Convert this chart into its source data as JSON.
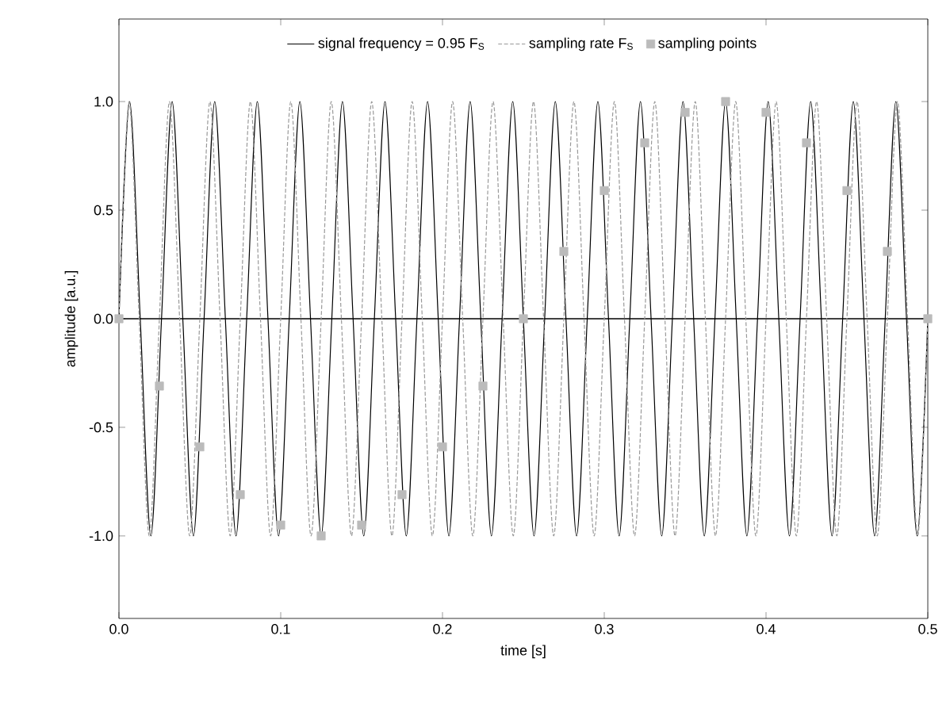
{
  "chart_data": {
    "type": "line",
    "xlabel": "time [s]",
    "ylabel": "amplitude [a.u.]",
    "xlim": [
      0,
      0.5
    ],
    "ylim": [
      -1.38,
      1.38
    ],
    "xticks": [
      {
        "value": 0,
        "label": "0.0"
      },
      {
        "value": 0.1,
        "label": "0.1"
      },
      {
        "value": 0.2,
        "label": "0.2"
      },
      {
        "value": 0.3,
        "label": "0.3"
      },
      {
        "value": 0.4,
        "label": "0.4"
      },
      {
        "value": 0.5,
        "label": "0.5"
      }
    ],
    "yticks": [
      {
        "value": -1,
        "label": "-1.0"
      },
      {
        "value": -0.5,
        "label": "-0.5"
      },
      {
        "value": 0,
        "label": "0.0"
      },
      {
        "value": 0.5,
        "label": "0.5"
      },
      {
        "value": 1,
        "label": "1.0"
      }
    ],
    "legend": "top",
    "ref_lines": [
      {
        "axis": "y",
        "value": 0,
        "color": "#000000"
      }
    ],
    "series": [
      {
        "name": "signal frequency = 0.95 F$_{S}$",
        "color": "#000000",
        "line_style": "solid",
        "x": [
          0,
          0.00658,
          0.01316,
          0.01974,
          0.02632,
          0.03289,
          0.03947,
          0.04605,
          0.05263,
          0.05921,
          0.06579,
          0.07237,
          0.07895,
          0.08553,
          0.09211,
          0.09868,
          0.10526,
          0.11184,
          0.11842,
          0.125,
          0.13158,
          0.13816,
          0.14474,
          0.15132,
          0.15789,
          0.16447,
          0.17105,
          0.17763,
          0.18421,
          0.19079,
          0.19737,
          0.20395,
          0.21053,
          0.21711,
          0.22368,
          0.23026,
          0.23684,
          0.24342,
          0.25,
          0.25658,
          0.26316,
          0.26974,
          0.27632,
          0.28289,
          0.28947,
          0.29605,
          0.30263,
          0.30921,
          0.31579,
          0.32237,
          0.32895,
          0.33553,
          0.34211,
          0.34868,
          0.35526,
          0.36184,
          0.36842,
          0.375,
          0.38158,
          0.38816,
          0.39474,
          0.40132,
          0.40789,
          0.41447,
          0.42105,
          0.42763,
          0.43421,
          0.44079,
          0.44737,
          0.45395,
          0.46053,
          0.46711,
          0.47368,
          0.48026,
          0.48684,
          0.49342,
          0.5
        ],
        "values": [
          0,
          1,
          0,
          -1,
          0,
          1,
          0,
          -1,
          0,
          1,
          0,
          -1,
          0,
          1,
          0,
          -1,
          0,
          1,
          0,
          -1,
          0,
          1,
          0,
          -1,
          0,
          1,
          0,
          -1,
          0,
          1,
          0,
          -1,
          0,
          1,
          0,
          -1,
          0,
          1,
          0,
          -1,
          0,
          1,
          0,
          -1,
          0,
          1,
          0,
          -1,
          0,
          1,
          0,
          -1,
          0,
          1,
          0,
          -1,
          0,
          1,
          0,
          -1,
          0,
          1,
          0,
          -1,
          0,
          1,
          0,
          -1,
          0,
          1,
          0,
          -1,
          0,
          1,
          0,
          -1,
          0
        ]
      },
      {
        "name": "sampling rate F$_{S}$",
        "color": "#999999",
        "line_style": "dashed",
        "x": [
          0,
          0.00625,
          0.0125,
          0.01875,
          0.025,
          0.03125,
          0.0375,
          0.04375,
          0.05,
          0.05625,
          0.0625,
          0.06875,
          0.075,
          0.08125,
          0.0875,
          0.09375,
          0.1,
          0.10625,
          0.1125,
          0.11875,
          0.125,
          0.13125,
          0.1375,
          0.14375,
          0.15,
          0.15625,
          0.1625,
          0.16875,
          0.175,
          0.18125,
          0.1875,
          0.19375,
          0.2,
          0.20625,
          0.2125,
          0.21875,
          0.225,
          0.23125,
          0.2375,
          0.24375,
          0.25,
          0.25625,
          0.2625,
          0.26875,
          0.275,
          0.28125,
          0.2875,
          0.29375,
          0.3,
          0.30625,
          0.3125,
          0.31875,
          0.325,
          0.33125,
          0.3375,
          0.34375,
          0.35,
          0.35625,
          0.3625,
          0.36875,
          0.375,
          0.38125,
          0.3875,
          0.39375,
          0.4,
          0.40625,
          0.4125,
          0.41875,
          0.425,
          0.43125,
          0.4375,
          0.44375,
          0.45,
          0.45625,
          0.4625,
          0.46875,
          0.475,
          0.48125,
          0.4875,
          0.49375,
          0.5
        ],
        "values": [
          0,
          1,
          0,
          -1,
          0,
          1,
          0,
          -1,
          0,
          1,
          0,
          -1,
          0,
          1,
          0,
          -1,
          0,
          1,
          0,
          -1,
          0,
          1,
          0,
          -1,
          0,
          1,
          0,
          -1,
          0,
          1,
          0,
          -1,
          0,
          1,
          0,
          -1,
          0,
          1,
          0,
          -1,
          0,
          1,
          0,
          -1,
          0,
          1,
          0,
          -1,
          0,
          1,
          0,
          -1,
          0,
          1,
          0,
          -1,
          0,
          1,
          0,
          -1,
          0,
          1,
          0,
          -1,
          0,
          1,
          0,
          -1,
          0,
          1,
          0,
          -1,
          0,
          1,
          0,
          -1,
          0,
          1,
          0,
          -1,
          0
        ]
      },
      {
        "name": "sampling points",
        "type": "scatter",
        "marker": "square",
        "color": "#bbbbbb",
        "x": [
          0,
          0.025,
          0.05,
          0.075,
          0.1,
          0.125,
          0.15,
          0.175,
          0.2,
          0.225,
          0.25,
          0.275,
          0.3,
          0.325,
          0.35,
          0.375,
          0.4,
          0.425,
          0.45,
          0.475,
          0.5
        ],
        "values": [
          0,
          -0.31,
          -0.59,
          -0.81,
          -0.95,
          -1,
          -0.95,
          -0.81,
          -0.59,
          -0.31,
          0,
          0.31,
          0.59,
          0.81,
          0.95,
          1,
          0.95,
          0.81,
          0.59,
          0.31,
          0
        ]
      }
    ]
  }
}
